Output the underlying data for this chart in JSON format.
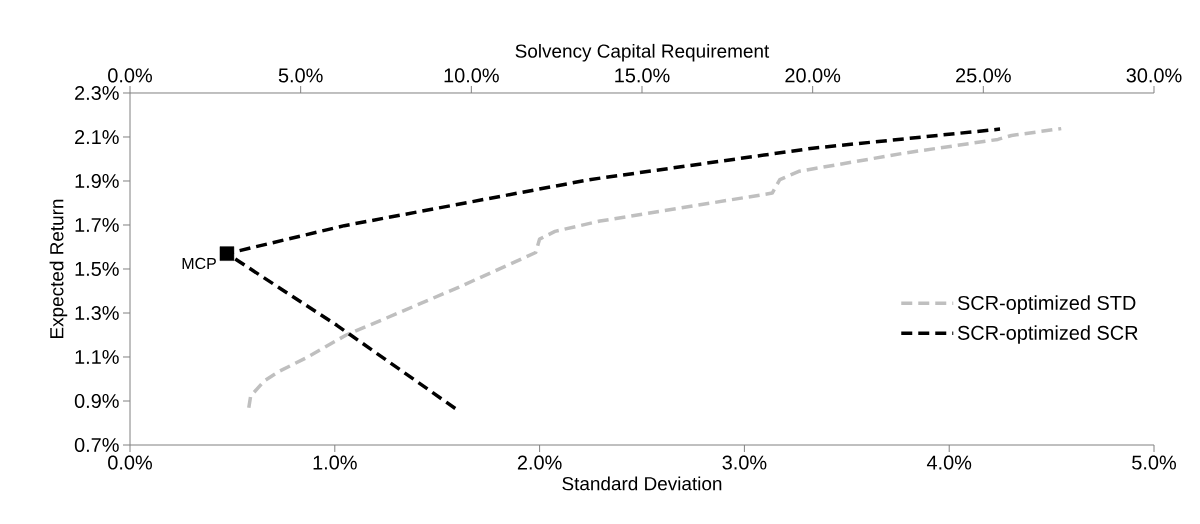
{
  "chart_data": {
    "type": "line",
    "xlabel": "Standard Deviation",
    "ylabel": "Expected Return",
    "x2label": "Solvency Capital Requirement",
    "xlim": [
      0,
      5
    ],
    "xticks": [
      {
        "value": 0,
        "label": "0.0%"
      },
      {
        "value": 1,
        "label": "1.0%"
      },
      {
        "value": 2,
        "label": "2.0%"
      },
      {
        "value": 3,
        "label": "3.0%"
      },
      {
        "value": 4,
        "label": "4.0%"
      },
      {
        "value": 5,
        "label": "5.0%"
      }
    ],
    "x2lim": [
      0,
      30
    ],
    "x2ticks": [
      {
        "value": 0,
        "label": "0.0%"
      },
      {
        "value": 5,
        "label": "5.0%"
      },
      {
        "value": 10,
        "label": "10.0%"
      },
      {
        "value": 15,
        "label": "15.0%"
      },
      {
        "value": 20,
        "label": "20.0%"
      },
      {
        "value": 25,
        "label": "25.0%"
      },
      {
        "value": 30,
        "label": "30.0%"
      }
    ],
    "ylim": [
      0.7,
      2.3
    ],
    "yticks": [
      {
        "value": 0.7,
        "label": "0.7%"
      },
      {
        "value": 0.9,
        "label": "0.9%"
      },
      {
        "value": 1.1,
        "label": "1.1%"
      },
      {
        "value": 1.3,
        "label": "1.3%"
      },
      {
        "value": 1.5,
        "label": "1.5%"
      },
      {
        "value": 1.7,
        "label": "1.7%"
      },
      {
        "value": 1.9,
        "label": "1.9%"
      },
      {
        "value": 2.1,
        "label": "2.1%"
      },
      {
        "value": 2.3,
        "label": "2.3%"
      }
    ],
    "grid": false,
    "legend": "right",
    "line_style": "dashed",
    "series": [
      {
        "name": "SCR-optimized STD",
        "color": "#bfbfbf",
        "x": [
          0.58,
          0.589,
          0.655,
          0.729,
          0.86,
          1.056,
          1.234,
          1.607,
          1.981,
          2.0,
          2.075,
          2.295,
          3.136,
          3.173,
          3.266,
          3.789,
          4.238,
          4.304,
          4.547
        ],
        "values": [
          0.869,
          0.922,
          0.991,
          1.035,
          1.096,
          1.2,
          1.27,
          1.418,
          1.575,
          1.636,
          1.671,
          1.718,
          1.845,
          1.906,
          1.944,
          2.028,
          2.089,
          2.107,
          2.138
        ]
      },
      {
        "name": "SCR-optimized SCR",
        "color": "#000000",
        "axis": "x2",
        "x": [
          9.53,
          6.06,
          2.84,
          6.28,
          13.46,
          20.0,
          25.49
        ],
        "values": [
          0.866,
          1.244,
          1.57,
          1.697,
          1.906,
          2.049,
          2.136
        ]
      },
      {
        "type": "scatter",
        "marker": "square",
        "color": "#000000",
        "axis": "x2",
        "x": [
          2.84
        ],
        "values": [
          1.57
        ]
      }
    ],
    "annotations": [
      "MCP"
    ]
  }
}
